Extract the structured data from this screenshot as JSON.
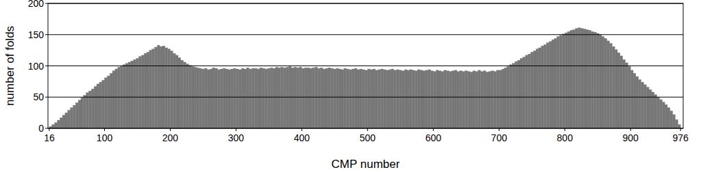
{
  "chart_data": {
    "type": "histogram",
    "x_label": "CMP number",
    "y_label": "number of folds",
    "color": "#777777",
    "bins": [
      16,
      20,
      24,
      28,
      32,
      36,
      40,
      44,
      48,
      52,
      56,
      60,
      64,
      68,
      72,
      76,
      80,
      84,
      88,
      92,
      96,
      100,
      104,
      108,
      112,
      116,
      120,
      124,
      128,
      132,
      136,
      140,
      144,
      148,
      152,
      156,
      160,
      164,
      168,
      172,
      176,
      180,
      184,
      188,
      192,
      196,
      200,
      204,
      208,
      212,
      216,
      220,
      224,
      228,
      232,
      236,
      240,
      244,
      248,
      252,
      256,
      260,
      264,
      268,
      272,
      276,
      280,
      284,
      288,
      292,
      296,
      300,
      304,
      308,
      312,
      316,
      320,
      324,
      328,
      332,
      336,
      340,
      344,
      348,
      352,
      356,
      360,
      364,
      368,
      372,
      376,
      380,
      384,
      388,
      392,
      396,
      400,
      404,
      408,
      412,
      416,
      420,
      424,
      428,
      432,
      436,
      440,
      444,
      448,
      452,
      456,
      460,
      464,
      468,
      472,
      476,
      480,
      484,
      488,
      492,
      496,
      500,
      504,
      508,
      512,
      516,
      520,
      524,
      528,
      532,
      536,
      540,
      544,
      548,
      552,
      556,
      560,
      564,
      568,
      572,
      576,
      580,
      584,
      588,
      592,
      596,
      600,
      604,
      608,
      612,
      616,
      620,
      624,
      628,
      632,
      636,
      640,
      644,
      648,
      652,
      656,
      660,
      664,
      668,
      672,
      676,
      680,
      684,
      688,
      692,
      696,
      700,
      704,
      708,
      712,
      716,
      720,
      724,
      728,
      732,
      736,
      740,
      744,
      748,
      752,
      756,
      760,
      764,
      768,
      772,
      776,
      780,
      784,
      788,
      792,
      796,
      800,
      804,
      808,
      812,
      816,
      820,
      824,
      828,
      832,
      836,
      840,
      844,
      848,
      852,
      856,
      860,
      864,
      868,
      872,
      876,
      880,
      884,
      888,
      892,
      896,
      900,
      904,
      908,
      912,
      916,
      920,
      924,
      928,
      932,
      936,
      940,
      944,
      948,
      952,
      956,
      960,
      964,
      968,
      972,
      976
    ],
    "values": [
      3,
      6,
      9,
      13,
      17,
      21,
      25,
      29,
      33,
      37,
      41,
      45,
      49,
      53,
      57,
      60,
      63,
      67,
      71,
      74,
      77,
      81,
      84,
      88,
      92,
      95,
      98,
      100,
      102,
      104,
      106,
      108,
      110,
      112,
      115,
      117,
      120,
      122,
      125,
      127,
      130,
      133,
      131,
      132,
      129,
      127,
      124,
      120,
      117,
      113,
      109,
      106,
      103,
      101,
      99,
      98,
      97,
      96,
      95,
      96,
      94,
      95,
      97,
      96,
      94,
      95,
      96,
      95,
      94,
      95,
      96,
      95,
      94,
      96,
      95,
      97,
      95,
      96,
      96,
      95,
      97,
      96,
      95,
      96,
      97,
      96,
      98,
      97,
      98,
      97,
      98,
      99,
      97,
      98,
      97,
      98,
      96,
      97,
      97,
      96,
      97,
      98,
      96,
      97,
      95,
      96,
      97,
      96,
      95,
      96,
      95,
      94,
      96,
      95,
      94,
      95,
      96,
      94,
      95,
      94,
      93,
      95,
      94,
      95,
      93,
      94,
      95,
      94,
      93,
      94,
      95,
      93,
      94,
      93,
      92,
      94,
      93,
      94,
      93,
      92,
      94,
      93,
      92,
      93,
      94,
      92,
      91,
      93,
      92,
      91,
      93,
      92,
      91,
      92,
      93,
      91,
      92,
      91,
      92,
      91,
      90,
      92,
      91,
      93,
      91,
      92,
      90,
      91,
      92,
      91,
      93,
      93,
      95,
      97,
      99,
      102,
      104,
      107,
      109,
      112,
      114,
      117,
      119,
      122,
      124,
      127,
      129,
      132,
      134,
      137,
      139,
      142,
      144,
      147,
      149,
      151,
      153,
      155,
      157,
      158,
      160,
      161,
      160,
      159,
      158,
      157,
      155,
      154,
      152,
      150,
      147,
      144,
      140,
      136,
      131,
      126,
      121,
      116,
      110,
      105,
      99,
      93,
      88,
      83,
      78,
      74,
      70,
      66,
      62,
      58,
      54,
      50,
      46,
      42,
      38,
      33,
      28,
      22,
      14,
      6
    ],
    "xlim": [
      14,
      980
    ],
    "xticks": [
      16,
      100,
      200,
      300,
      400,
      500,
      600,
      700,
      800,
      900,
      976
    ],
    "ylim": [
      0,
      200
    ],
    "yticks": [
      0,
      50,
      100,
      150,
      200
    ],
    "grid": true
  }
}
